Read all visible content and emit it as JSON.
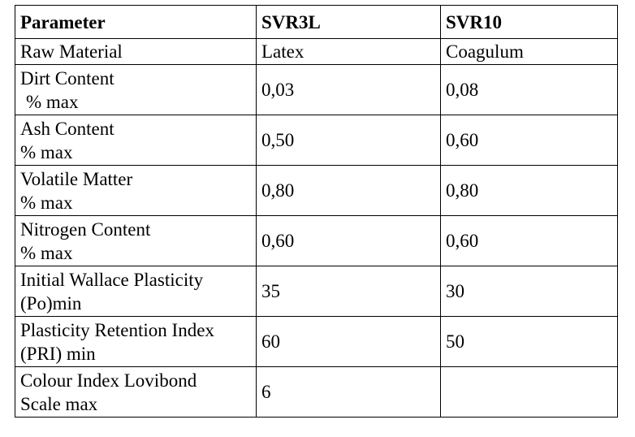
{
  "table": {
    "headers": [
      "Parameter",
      "SVR3L",
      "SVR10"
    ],
    "rows": [
      {
        "parameter": [
          "Raw Material"
        ],
        "svr3l": "Latex",
        "svr10": "Coagulum"
      },
      {
        "parameter": [
          "Dirt Content",
          "% max"
        ],
        "svr3l": "0,03",
        "svr10": "0,08"
      },
      {
        "parameter": [
          "Ash Content",
          "% max"
        ],
        "svr3l": "0,50",
        "svr10": "0,60"
      },
      {
        "parameter": [
          "Volatile Matter",
          "% max"
        ],
        "svr3l": "0,80",
        "svr10": "0,80"
      },
      {
        "parameter": [
          "Nitrogen Content",
          "% max"
        ],
        "svr3l": "0,60",
        "svr10": "0,60"
      },
      {
        "parameter": [
          "Initial Wallace Plasticity",
          "(Po)min"
        ],
        "svr3l": "35",
        "svr10": "30"
      },
      {
        "parameter": [
          "Plasticity Retention Index",
          "(PRI) min"
        ],
        "svr3l": "60",
        "svr10": "50"
      },
      {
        "parameter": [
          "Colour Index Lovibond",
          "Scale max"
        ],
        "svr3l": "6",
        "svr10": ""
      }
    ]
  }
}
